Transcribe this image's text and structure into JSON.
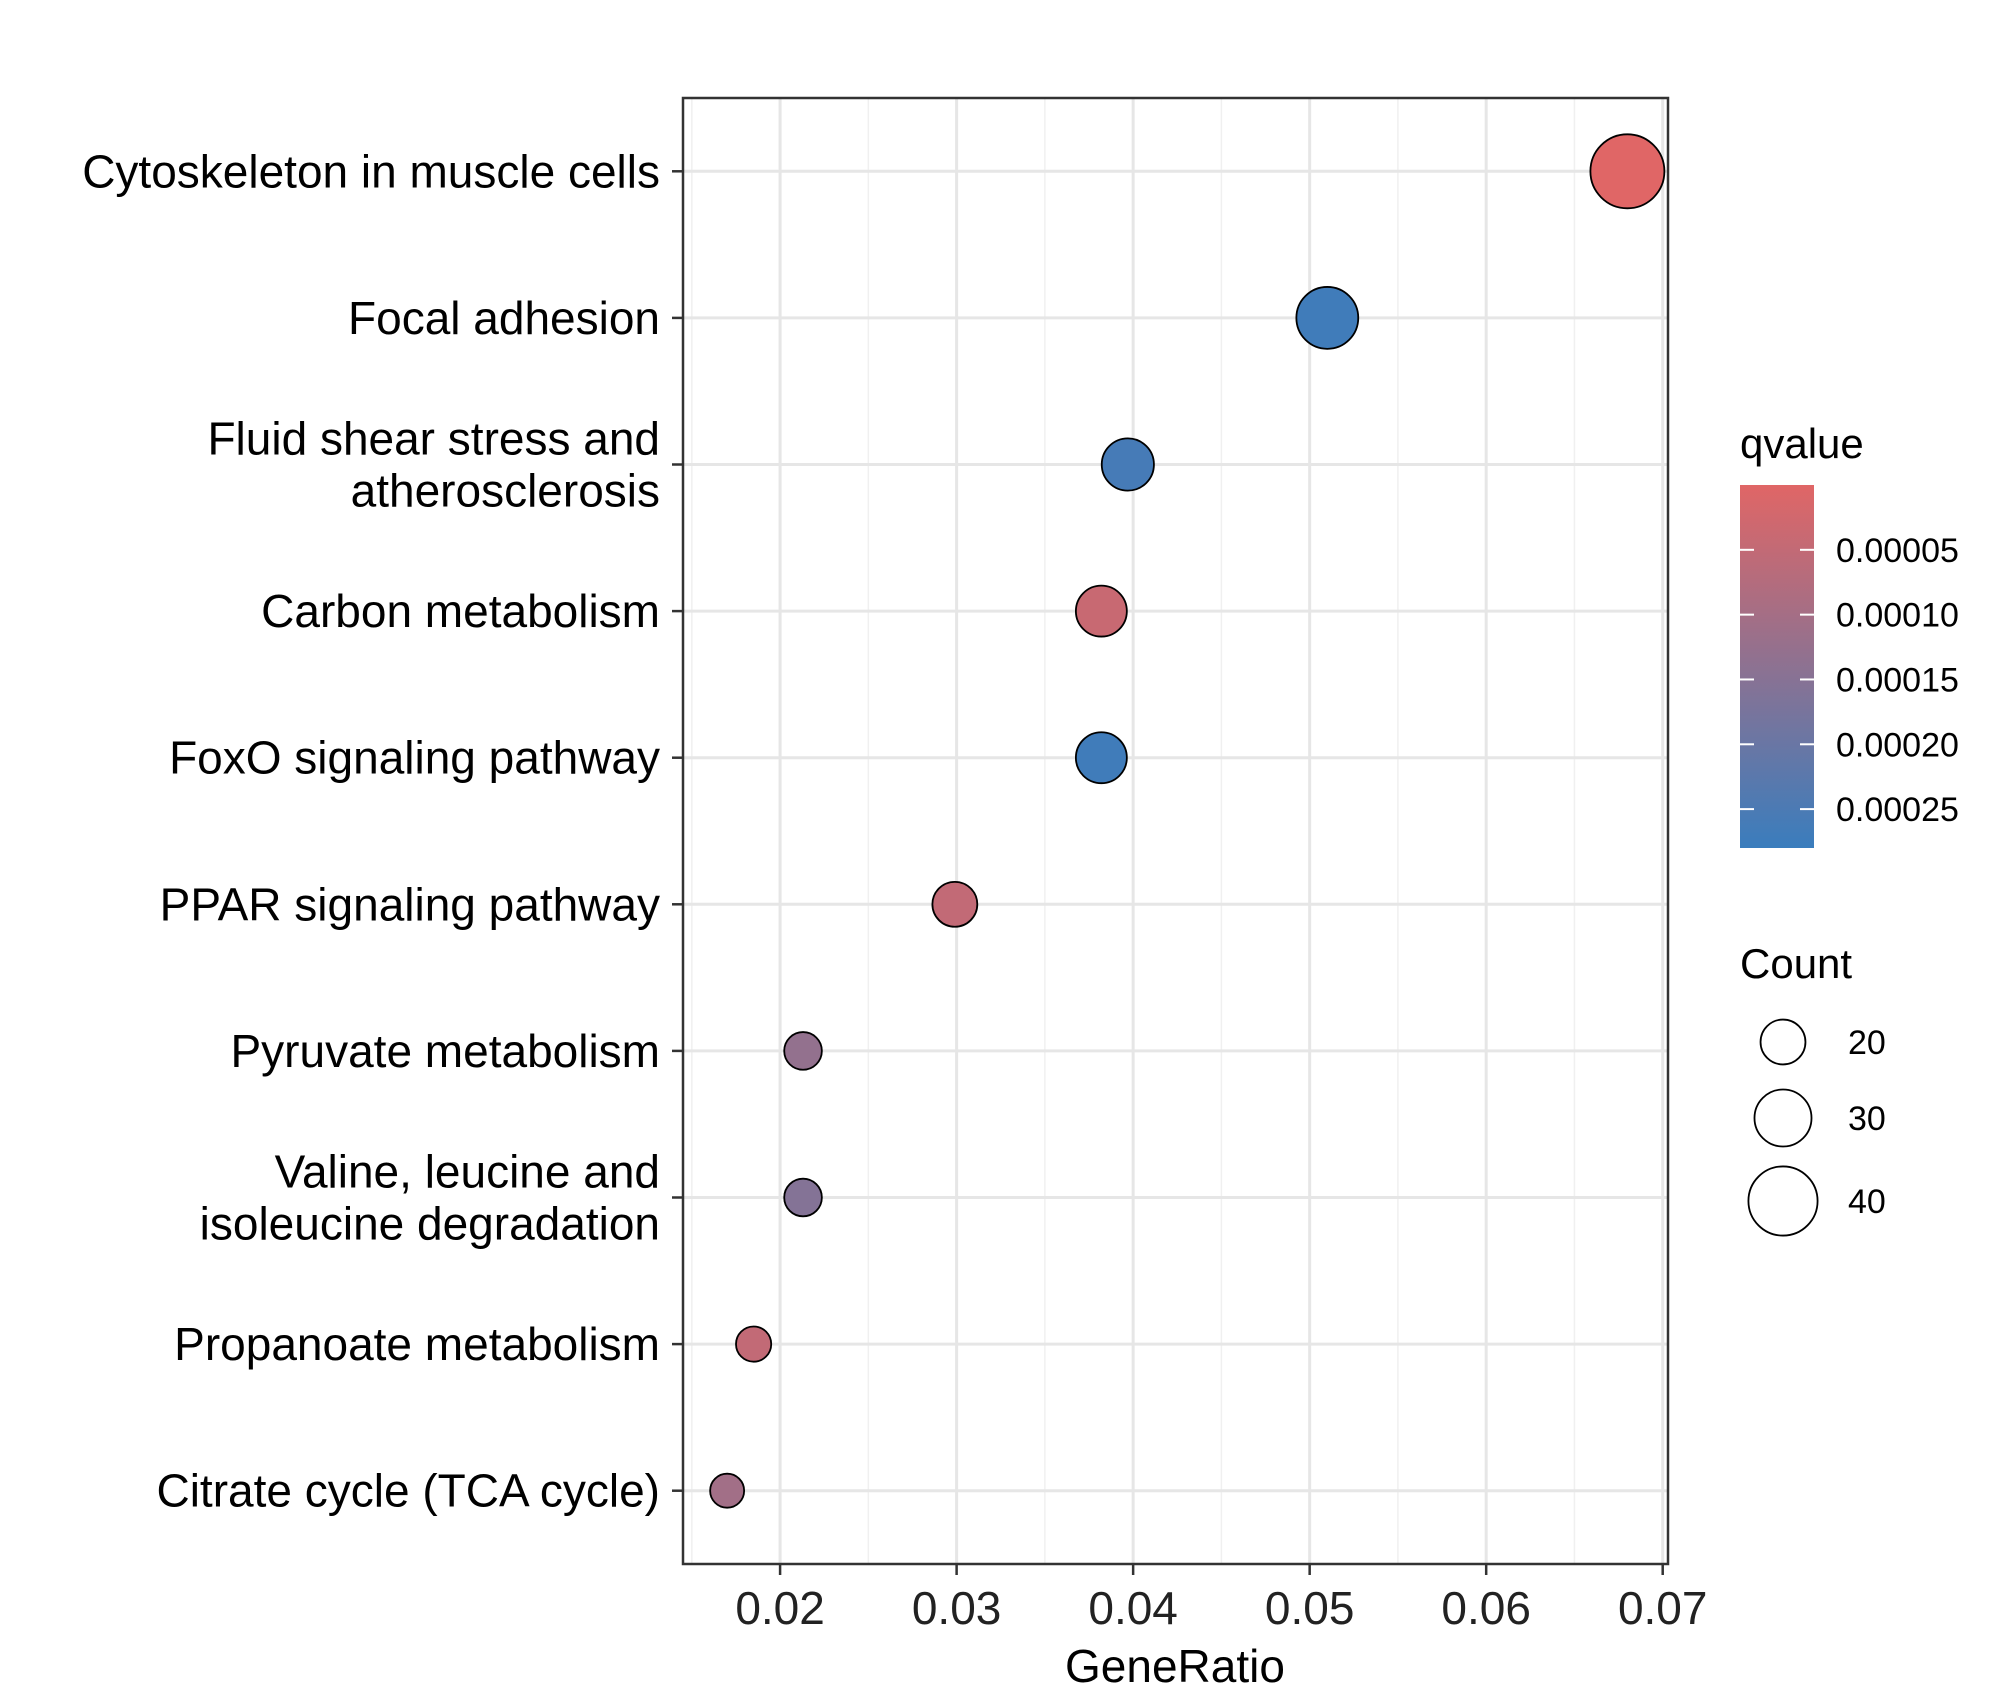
{
  "chart_data": {
    "type": "scatter",
    "title": "",
    "xlabel": "GeneRatio",
    "ylabel": "",
    "xlim": [
      0.0145,
      0.0703
    ],
    "xticks": [
      "0.02",
      "0.03",
      "0.04",
      "0.05",
      "0.06",
      "0.07"
    ],
    "xtick_values": [
      0.02,
      0.03,
      0.04,
      0.05,
      0.06,
      0.07
    ],
    "grid": true,
    "legend_position": "right",
    "categories": [
      [
        "Cytoskeleton in muscle cells"
      ],
      [
        "Focal adhesion"
      ],
      [
        "Fluid shear stress and",
        "atherosclerosis"
      ],
      [
        "Carbon metabolism"
      ],
      [
        "FoxO signaling pathway"
      ],
      [
        "PPAR signaling pathway"
      ],
      [
        "Pyruvate metabolism"
      ],
      [
        "Valine, leucine and",
        "isoleucine degradation"
      ],
      [
        "Propanoate metabolism"
      ],
      [
        "Citrate cycle (TCA cycle)"
      ]
    ],
    "points": [
      {
        "gene_ratio": 0.068,
        "count": 44,
        "qvalue": 5e-07
      },
      {
        "gene_ratio": 0.051,
        "count": 34,
        "qvalue": 0.00027
      },
      {
        "gene_ratio": 0.0397,
        "count": 26,
        "qvalue": 0.00026
      },
      {
        "gene_ratio": 0.0382,
        "count": 25,
        "qvalue": 4e-05
      },
      {
        "gene_ratio": 0.0382,
        "count": 25,
        "qvalue": 0.00027
      },
      {
        "gene_ratio": 0.0299,
        "count": 20,
        "qvalue": 5e-05
      },
      {
        "gene_ratio": 0.0213,
        "count": 14,
        "qvalue": 0.00013
      },
      {
        "gene_ratio": 0.0213,
        "count": 14,
        "qvalue": 0.000155
      },
      {
        "gene_ratio": 0.0185,
        "count": 12,
        "qvalue": 5e-05
      },
      {
        "gene_ratio": 0.017,
        "count": 11,
        "qvalue": 0.000105
      }
    ],
    "color_scale": {
      "title": "qvalue",
      "low_color": "#e06666",
      "high_color": "#3a7dbd",
      "range": [
        0.0,
        0.00028
      ],
      "ticks": [
        "0.00005",
        "0.00010",
        "0.00015",
        "0.00020",
        "0.00025"
      ],
      "tick_values": [
        5e-05,
        0.0001,
        0.00015,
        0.0002,
        0.00025
      ]
    },
    "size_scale": {
      "title": "Count",
      "ticks": [
        "20",
        "30",
        "40"
      ],
      "tick_values": [
        20,
        30,
        40
      ],
      "range": [
        11,
        44
      ]
    }
  }
}
